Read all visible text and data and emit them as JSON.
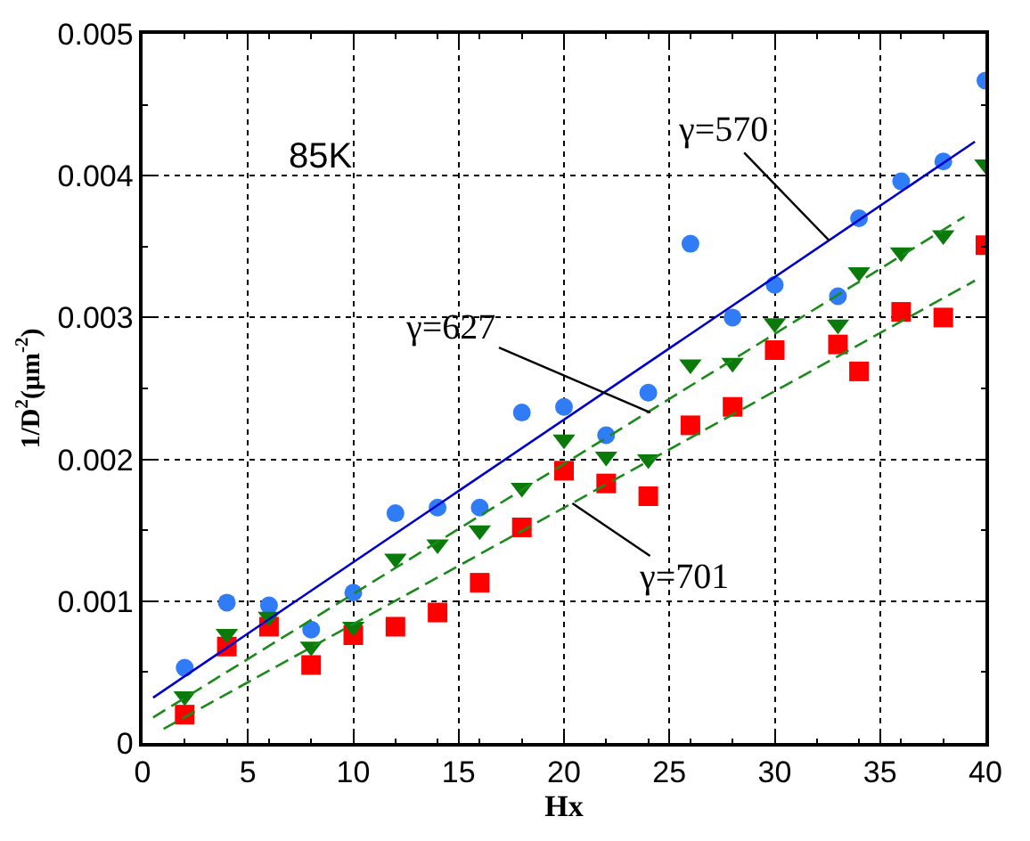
{
  "chart_data": {
    "type": "scatter",
    "xlabel": "Hx",
    "ylabel": "1/D$^{2}$(μm$^{-2}$)",
    "xlim": [
      0,
      40
    ],
    "xticks": [
      0,
      5,
      10,
      15,
      20,
      25,
      30,
      35,
      40
    ],
    "ylim": [
      0,
      0.005
    ],
    "yticks": [
      0,
      0.001,
      0.002,
      0.003,
      0.004,
      0.005
    ],
    "grid": true,
    "x": [
      2,
      4,
      6,
      8,
      10,
      12,
      14,
      16,
      18,
      20,
      22,
      24,
      26,
      28,
      30,
      33,
      34,
      36,
      38,
      40
    ],
    "series": [
      {
        "color": "#2f7cf6",
        "marker": "circle",
        "values": [
          0.00053,
          0.00099,
          0.00097,
          0.0008,
          0.00106,
          0.00162,
          0.00166,
          0.00166,
          0.00233,
          0.00237,
          0.00217,
          0.00247,
          0.00352,
          0.003,
          0.00323,
          0.00315,
          0.0037,
          0.00396,
          0.0041,
          0.00467
        ]
      },
      {
        "color": "#ff0000",
        "marker": "square",
        "values": [
          0.0002,
          0.00068,
          0.00082,
          0.00055,
          0.00076,
          0.00082,
          0.00092,
          0.00113,
          0.00152,
          0.00192,
          0.00183,
          0.00174,
          0.00224,
          0.00237,
          0.00277,
          0.00281,
          0.00262,
          0.00304,
          0.003,
          0.00351
        ]
      },
      {
        "color": "#0a7a0a",
        "marker": "triangle",
        "values": [
          0.00033,
          0.00077,
          0.00089,
          0.00068,
          0.00082,
          0.0013,
          0.0014,
          0.0015,
          0.0018,
          0.00214,
          0.00202,
          0.002,
          0.00267,
          0.00268,
          0.00296,
          0.00295,
          0.00332,
          0.00346,
          0.00358,
          0.00408
        ]
      },
      {
        "type": "line",
        "x": [
          0.5,
          39.5
        ],
        "color": "#0000cc",
        "marker": "none",
        "line_style": "solid",
        "values": [
          0.00032,
          0.00424
        ]
      },
      {
        "type": "line",
        "x": [
          0.5,
          39
        ],
        "color": "#1a8a1a",
        "marker": "none",
        "line_style": "dashed",
        "values": [
          0.00018,
          0.00371
        ]
      },
      {
        "type": "line",
        "x": [
          1,
          39.5
        ],
        "color": "#1a8a1a",
        "marker": "none",
        "line_style": "dashed",
        "values": [
          0.0001,
          0.00326
        ]
      }
    ],
    "annotations": [
      "85K",
      {
        "text": "γ=570",
        "x": 32.6,
        "y": 0.00354
      },
      {
        "text": "γ=627",
        "x": 24.1,
        "y": 0.00233
      },
      {
        "text": "γ=701",
        "x": 20.4,
        "y": 0.00169
      }
    ]
  }
}
